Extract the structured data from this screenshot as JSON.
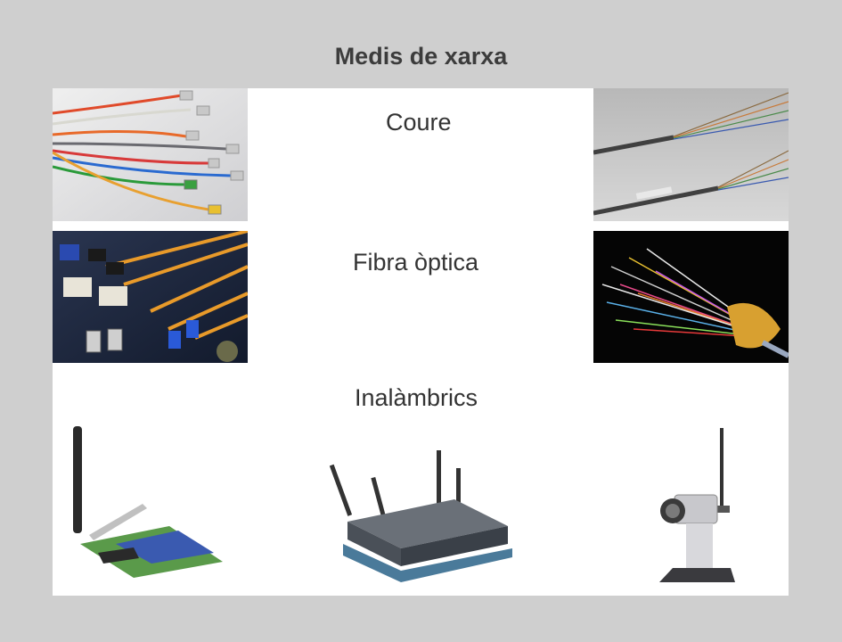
{
  "slide": {
    "title": "Medis de xarxa",
    "sections": {
      "copper": "Coure",
      "fiber": "Fibra òptica",
      "wireless": "Inalàmbrics"
    }
  },
  "photos": [
    {
      "id": "copper-patch-cables",
      "subject": "ethernet-patch-cables"
    },
    {
      "id": "copper-twisted-pair",
      "subject": "twisted-pair-cable"
    },
    {
      "id": "fiber-connectors",
      "subject": "fiber-optic-connectors"
    },
    {
      "id": "fiber-strands",
      "subject": "fiber-optic-cable-bundle"
    },
    {
      "id": "wireless-pci-card",
      "subject": "wireless-network-card"
    },
    {
      "id": "wireless-router",
      "subject": "wireless-router"
    },
    {
      "id": "wireless-camera",
      "subject": "wireless-camera"
    }
  ],
  "colors": {
    "background": "#cfcfcf",
    "panel": "#ffffff",
    "text": "#333333"
  }
}
